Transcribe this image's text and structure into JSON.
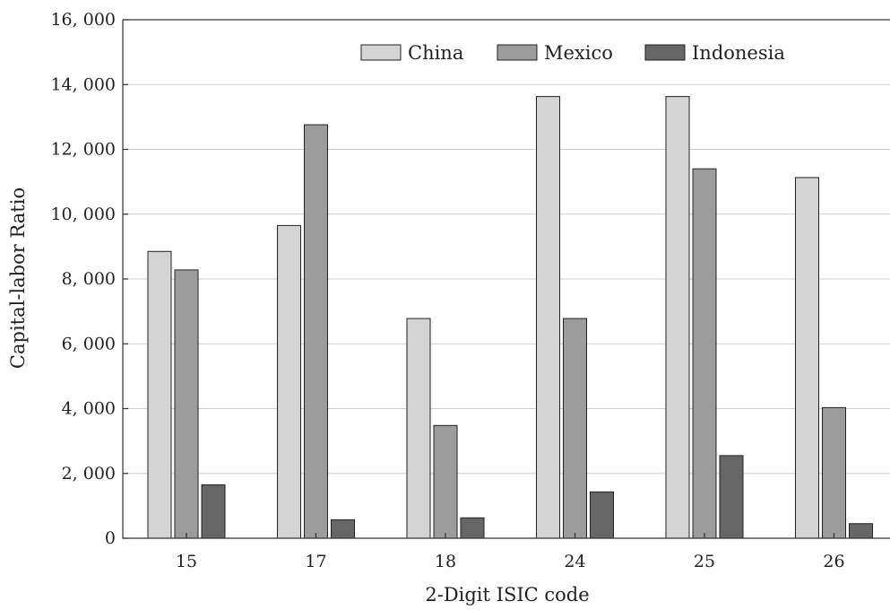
{
  "chart_data": {
    "type": "bar",
    "title": "",
    "xlabel": "2-Digit ISIC code",
    "ylabel": "Capital-labor Ratio",
    "categories": [
      "15",
      "17",
      "18",
      "24",
      "25",
      "26"
    ],
    "ylim": [
      0,
      16000
    ],
    "yticks": [
      0,
      2000,
      4000,
      6000,
      8000,
      10000,
      12000,
      14000,
      16000
    ],
    "ytick_labels": [
      "0",
      "2, 000",
      "4, 000",
      "6, 000",
      "8, 000",
      "10, 000",
      "12, 000",
      "14, 000",
      "16, 000"
    ],
    "grid": "horizontal",
    "legend_position": "top",
    "series": [
      {
        "name": "China",
        "color": "#d4d4d4",
        "values": [
          8850,
          9650,
          6780,
          13630,
          13630,
          11130
        ]
      },
      {
        "name": "Mexico",
        "color": "#9c9c9c",
        "values": [
          8280,
          12760,
          3480,
          6780,
          11400,
          4030
        ]
      },
      {
        "name": "Indonesia",
        "color": "#666666",
        "values": [
          1650,
          570,
          630,
          1430,
          2550,
          450
        ]
      }
    ]
  }
}
